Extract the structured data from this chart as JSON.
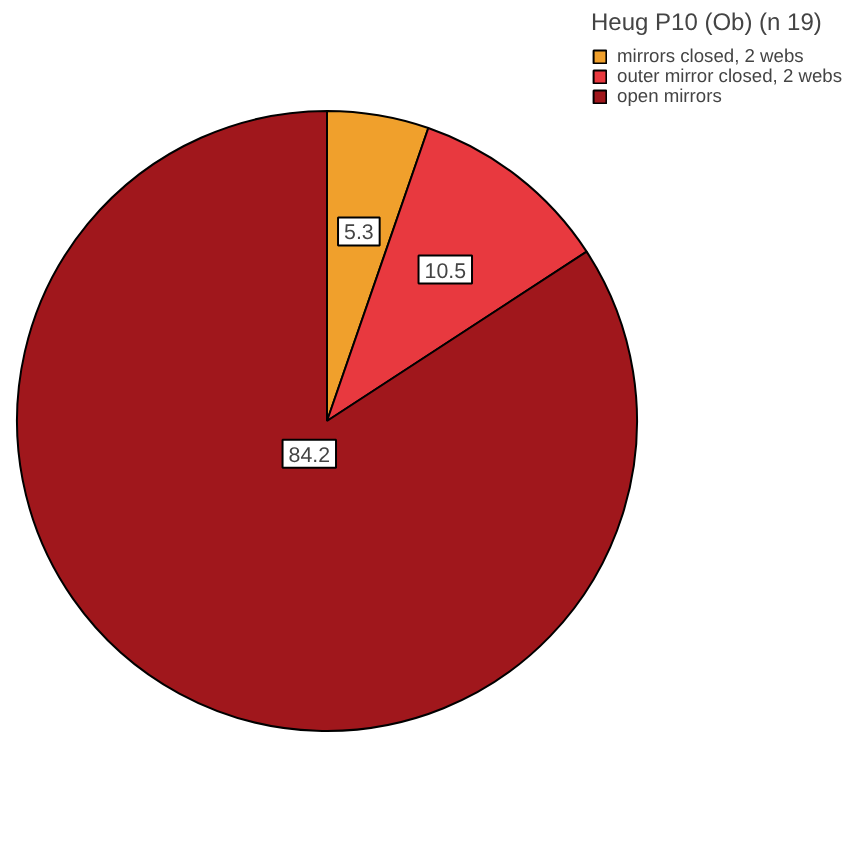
{
  "chart_data": {
    "type": "pie",
    "legend_title": "Heug P10 (Ob) (n 19)",
    "categories": [
      "mirrors closed, 2 webs",
      "outer mirror closed, 2 webs",
      "open mirrors"
    ],
    "values": [
      5.3,
      10.5,
      84.2
    ],
    "colors": [
      "#f0a02c",
      "#e8393f",
      "#a0171c"
    ],
    "data_labels": true,
    "legend": "top right"
  }
}
